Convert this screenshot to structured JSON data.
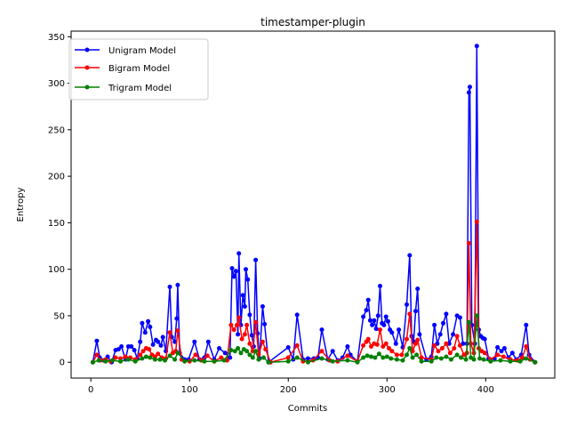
{
  "chart_data": {
    "type": "line",
    "title": "timestamper-plugin",
    "xlabel": "Commits",
    "ylabel": "Entropy",
    "xlim": [
      -20,
      470
    ],
    "ylim": [
      -17,
      356
    ],
    "xticks": [
      0,
      100,
      200,
      300,
      400
    ],
    "yticks": [
      0,
      50,
      100,
      150,
      200,
      250,
      300,
      350
    ],
    "legend_position": "top-left",
    "grid": false,
    "series": [
      {
        "name": "Unigram Model",
        "color": "#0000ff",
        "points": [
          [
            2,
            0
          ],
          [
            6,
            23
          ],
          [
            9,
            5
          ],
          [
            13,
            2
          ],
          [
            17,
            6
          ],
          [
            21,
            0
          ],
          [
            25,
            13
          ],
          [
            28,
            14
          ],
          [
            31,
            17
          ],
          [
            35,
            3
          ],
          [
            38,
            17
          ],
          [
            41,
            17
          ],
          [
            44,
            13
          ],
          [
            47,
            4
          ],
          [
            50,
            22
          ],
          [
            52,
            42
          ],
          [
            55,
            32
          ],
          [
            58,
            44
          ],
          [
            60,
            38
          ],
          [
            63,
            19
          ],
          [
            66,
            24
          ],
          [
            68,
            22
          ],
          [
            71,
            18
          ],
          [
            73,
            27
          ],
          [
            76,
            12
          ],
          [
            80,
            81
          ],
          [
            82,
            27
          ],
          [
            85,
            22
          ],
          [
            87,
            47
          ],
          [
            88,
            83
          ],
          [
            90,
            10
          ],
          [
            95,
            3
          ],
          [
            99,
            3
          ],
          [
            105,
            22
          ],
          [
            110,
            3
          ],
          [
            115,
            5
          ],
          [
            119,
            22
          ],
          [
            125,
            3
          ],
          [
            130,
            15
          ],
          [
            136,
            10
          ],
          [
            141,
            5
          ],
          [
            143,
            101
          ],
          [
            145,
            92
          ],
          [
            147,
            98
          ],
          [
            149,
            30
          ],
          [
            150,
            117
          ],
          [
            152,
            40
          ],
          [
            154,
            72
          ],
          [
            156,
            60
          ],
          [
            157,
            100
          ],
          [
            159,
            89
          ],
          [
            161,
            51
          ],
          [
            163,
            29
          ],
          [
            165,
            17
          ],
          [
            167,
            110
          ],
          [
            169,
            31
          ],
          [
            171,
            4
          ],
          [
            174,
            60
          ],
          [
            176,
            41
          ],
          [
            180,
            0
          ],
          [
            200,
            16
          ],
          [
            205,
            3
          ],
          [
            209,
            51
          ],
          [
            215,
            3
          ],
          [
            220,
            4
          ],
          [
            226,
            4
          ],
          [
            230,
            5
          ],
          [
            234,
            35
          ],
          [
            240,
            3
          ],
          [
            245,
            12
          ],
          [
            250,
            2
          ],
          [
            255,
            5
          ],
          [
            260,
            17
          ],
          [
            263,
            8
          ],
          [
            270,
            1
          ],
          [
            276,
            49
          ],
          [
            279,
            56
          ],
          [
            281,
            67
          ],
          [
            283,
            45
          ],
          [
            285,
            40
          ],
          [
            287,
            45
          ],
          [
            289,
            36
          ],
          [
            291,
            50
          ],
          [
            293,
            82
          ],
          [
            295,
            42
          ],
          [
            297,
            40
          ],
          [
            299,
            49
          ],
          [
            301,
            44
          ],
          [
            303,
            35
          ],
          [
            305,
            32
          ],
          [
            309,
            20
          ],
          [
            312,
            35
          ],
          [
            316,
            16
          ],
          [
            320,
            62
          ],
          [
            323,
            115
          ],
          [
            325,
            28
          ],
          [
            327,
            22
          ],
          [
            329,
            55
          ],
          [
            331,
            79
          ],
          [
            333,
            30
          ],
          [
            340,
            3
          ],
          [
            345,
            6
          ],
          [
            348,
            40
          ],
          [
            351,
            20
          ],
          [
            354,
            30
          ],
          [
            357,
            42
          ],
          [
            360,
            52
          ],
          [
            363,
            20
          ],
          [
            367,
            30
          ],
          [
            371,
            50
          ],
          [
            374,
            48
          ],
          [
            377,
            20
          ],
          [
            381,
            20
          ],
          [
            383,
            290
          ],
          [
            384,
            296
          ],
          [
            386,
            40
          ],
          [
            389,
            20
          ],
          [
            391,
            340
          ],
          [
            393,
            35
          ],
          [
            395,
            28
          ],
          [
            397,
            26
          ],
          [
            399,
            25
          ],
          [
            403,
            4
          ],
          [
            409,
            4
          ],
          [
            412,
            16
          ],
          [
            416,
            12
          ],
          [
            419,
            15
          ],
          [
            423,
            5
          ],
          [
            427,
            10
          ],
          [
            431,
            3
          ],
          [
            436,
            8
          ],
          [
            441,
            40
          ],
          [
            444,
            8
          ],
          [
            450,
            0
          ]
        ]
      },
      {
        "name": "Bigram Model",
        "color": "#ff0000",
        "points": [
          [
            2,
            0
          ],
          [
            6,
            8
          ],
          [
            10,
            2
          ],
          [
            15,
            3
          ],
          [
            20,
            1
          ],
          [
            25,
            5
          ],
          [
            30,
            4
          ],
          [
            35,
            6
          ],
          [
            40,
            5
          ],
          [
            45,
            3
          ],
          [
            50,
            8
          ],
          [
            53,
            12
          ],
          [
            56,
            15
          ],
          [
            59,
            14
          ],
          [
            62,
            8
          ],
          [
            65,
            6
          ],
          [
            68,
            9
          ],
          [
            72,
            5
          ],
          [
            76,
            4
          ],
          [
            80,
            32
          ],
          [
            83,
            10
          ],
          [
            86,
            12
          ],
          [
            88,
            34
          ],
          [
            92,
            3
          ],
          [
            100,
            1
          ],
          [
            106,
            8
          ],
          [
            112,
            2
          ],
          [
            118,
            7
          ],
          [
            125,
            1
          ],
          [
            132,
            5
          ],
          [
            138,
            2
          ],
          [
            142,
            40
          ],
          [
            145,
            35
          ],
          [
            148,
            40
          ],
          [
            150,
            48
          ],
          [
            153,
            25
          ],
          [
            156,
            30
          ],
          [
            158,
            40
          ],
          [
            161,
            20
          ],
          [
            164,
            12
          ],
          [
            167,
            43
          ],
          [
            170,
            8
          ],
          [
            174,
            22
          ],
          [
            177,
            14
          ],
          [
            182,
            0
          ],
          [
            200,
            5
          ],
          [
            209,
            18
          ],
          [
            215,
            1
          ],
          [
            225,
            2
          ],
          [
            234,
            12
          ],
          [
            242,
            2
          ],
          [
            250,
            1
          ],
          [
            260,
            7
          ],
          [
            270,
            1
          ],
          [
            276,
            18
          ],
          [
            279,
            22
          ],
          [
            281,
            25
          ],
          [
            284,
            17
          ],
          [
            287,
            20
          ],
          [
            290,
            19
          ],
          [
            293,
            35
          ],
          [
            296,
            17
          ],
          [
            299,
            20
          ],
          [
            302,
            15
          ],
          [
            305,
            12
          ],
          [
            310,
            8
          ],
          [
            315,
            8
          ],
          [
            320,
            25
          ],
          [
            323,
            52
          ],
          [
            326,
            12
          ],
          [
            329,
            20
          ],
          [
            331,
            24
          ],
          [
            335,
            5
          ],
          [
            345,
            3
          ],
          [
            348,
            18
          ],
          [
            352,
            12
          ],
          [
            356,
            15
          ],
          [
            360,
            20
          ],
          [
            364,
            10
          ],
          [
            368,
            15
          ],
          [
            371,
            28
          ],
          [
            374,
            18
          ],
          [
            378,
            8
          ],
          [
            381,
            10
          ],
          [
            383,
            128
          ],
          [
            385,
            20
          ],
          [
            388,
            10
          ],
          [
            391,
            151
          ],
          [
            393,
            15
          ],
          [
            396,
            12
          ],
          [
            399,
            10
          ],
          [
            405,
            3
          ],
          [
            412,
            8
          ],
          [
            418,
            6
          ],
          [
            425,
            3
          ],
          [
            432,
            2
          ],
          [
            437,
            5
          ],
          [
            441,
            17
          ],
          [
            445,
            3
          ],
          [
            450,
            0
          ]
        ]
      },
      {
        "name": "Trigram Model",
        "color": "#008000",
        "points": [
          [
            2,
            0
          ],
          [
            8,
            2
          ],
          [
            15,
            1
          ],
          [
            22,
            2
          ],
          [
            30,
            1
          ],
          [
            38,
            3
          ],
          [
            45,
            1
          ],
          [
            52,
            4
          ],
          [
            56,
            6
          ],
          [
            60,
            5
          ],
          [
            65,
            3
          ],
          [
            70,
            3
          ],
          [
            75,
            2
          ],
          [
            80,
            7
          ],
          [
            85,
            3
          ],
          [
            88,
            10
          ],
          [
            95,
            1
          ],
          [
            105,
            2
          ],
          [
            115,
            1
          ],
          [
            125,
            1
          ],
          [
            135,
            2
          ],
          [
            142,
            13
          ],
          [
            146,
            12
          ],
          [
            149,
            15
          ],
          [
            152,
            10
          ],
          [
            155,
            14
          ],
          [
            158,
            12
          ],
          [
            161,
            8
          ],
          [
            164,
            5
          ],
          [
            167,
            12
          ],
          [
            170,
            3
          ],
          [
            175,
            5
          ],
          [
            180,
            0
          ],
          [
            200,
            1
          ],
          [
            209,
            5
          ],
          [
            220,
            0
          ],
          [
            234,
            4
          ],
          [
            245,
            1
          ],
          [
            260,
            2
          ],
          [
            270,
            0
          ],
          [
            276,
            5
          ],
          [
            280,
            7
          ],
          [
            284,
            6
          ],
          [
            288,
            5
          ],
          [
            292,
            9
          ],
          [
            296,
            5
          ],
          [
            300,
            6
          ],
          [
            304,
            4
          ],
          [
            310,
            3
          ],
          [
            316,
            2
          ],
          [
            320,
            8
          ],
          [
            323,
            15
          ],
          [
            326,
            5
          ],
          [
            330,
            8
          ],
          [
            335,
            1
          ],
          [
            345,
            1
          ],
          [
            350,
            5
          ],
          [
            355,
            4
          ],
          [
            360,
            6
          ],
          [
            365,
            3
          ],
          [
            371,
            8
          ],
          [
            375,
            5
          ],
          [
            380,
            3
          ],
          [
            383,
            43
          ],
          [
            385,
            5
          ],
          [
            388,
            3
          ],
          [
            391,
            50
          ],
          [
            394,
            4
          ],
          [
            398,
            3
          ],
          [
            405,
            1
          ],
          [
            415,
            2
          ],
          [
            425,
            1
          ],
          [
            435,
            1
          ],
          [
            441,
            4
          ],
          [
            450,
            0
          ]
        ]
      }
    ]
  }
}
